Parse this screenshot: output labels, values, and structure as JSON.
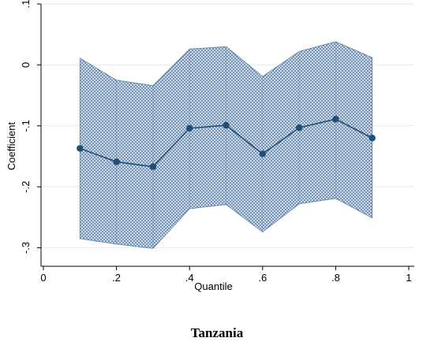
{
  "chart_data": {
    "type": "line",
    "title": "",
    "xlabel": "Quantile",
    "ylabel": "Coefficient",
    "xlim": [
      0,
      1
    ],
    "ylim": [
      -0.32,
      0.1
    ],
    "x_ticks": [
      0,
      0.2,
      0.4,
      0.6,
      0.8,
      1
    ],
    "x_tick_labels": [
      "0",
      ".2",
      ".4",
      ".6",
      ".8",
      "1"
    ],
    "y_ticks": [
      -0.3,
      -0.2,
      -0.1,
      0,
      0.1
    ],
    "y_tick_labels": [
      "-.3",
      "-.2",
      "-.1",
      "0",
      ".1"
    ],
    "grid": true,
    "series": [
      {
        "x": [
          0.1,
          0.2,
          0.3,
          0.4,
          0.5,
          0.6,
          0.7,
          0.8,
          0.9
        ],
        "values": [
          -0.137,
          -0.159,
          -0.167,
          -0.104,
          -0.099,
          -0.146,
          -0.103,
          -0.089,
          -0.12
        ],
        "ci_upper": [
          0.011,
          -0.025,
          -0.034,
          0.026,
          0.03,
          -0.019,
          0.022,
          0.038,
          0.012
        ],
        "ci_lower": [
          -0.285,
          -0.294,
          -0.301,
          -0.236,
          -0.229,
          -0.274,
          -0.228,
          -0.219,
          -0.251
        ]
      }
    ],
    "colors": {
      "line": "#1f4e79",
      "marker": "#1f4e79",
      "band": "#5a7fa8",
      "band_background": "#eaf0f6",
      "grid": "#e2ecf1",
      "axis": "#000000"
    }
  },
  "caption": "Tanzania"
}
